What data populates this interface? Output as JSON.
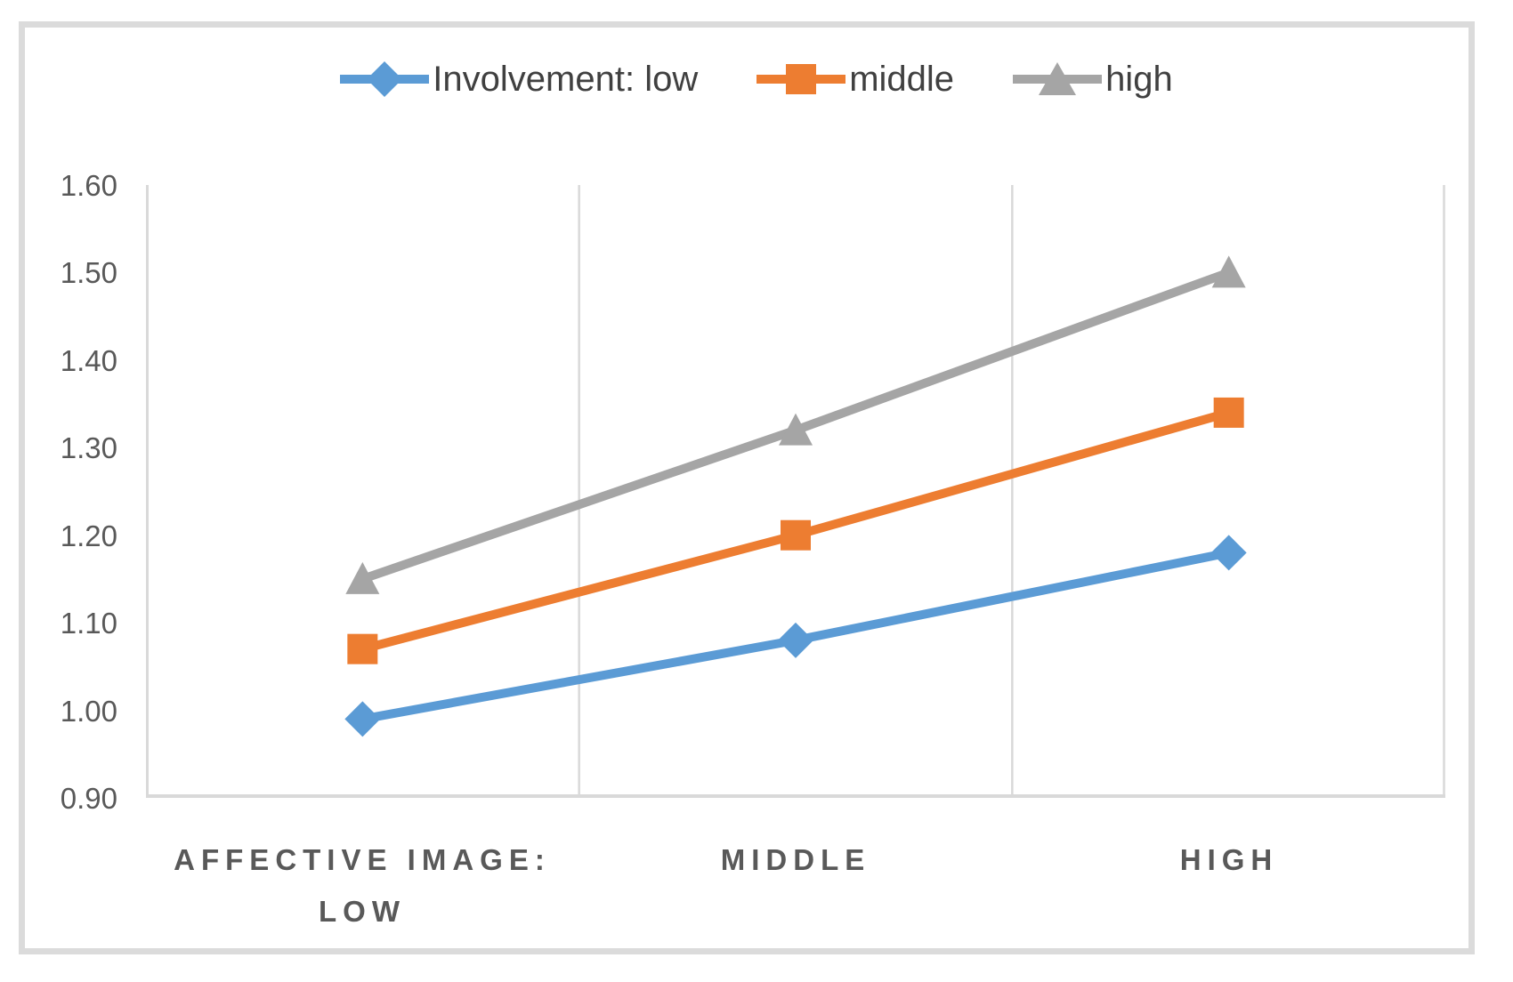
{
  "chart_data": {
    "type": "line",
    "title": "",
    "xlabel": "",
    "ylabel": "",
    "categories": [
      "AFFECTIVE IMAGE: LOW",
      "MIDDLE",
      "HIGH"
    ],
    "x_display": [
      "AFFECTIVE IMAGE:\nLOW",
      "MIDDLE",
      "HIGH"
    ],
    "series": [
      {
        "name": "Involvement: low",
        "marker": "diamond",
        "color": "#5B9BD5",
        "values": [
          0.99,
          1.08,
          1.18
        ]
      },
      {
        "name": "middle",
        "marker": "square",
        "color": "#ED7D31",
        "values": [
          1.07,
          1.2,
          1.34
        ]
      },
      {
        "name": "high",
        "marker": "triangle",
        "color": "#A5A5A5",
        "values": [
          1.15,
          1.32,
          1.5
        ]
      }
    ],
    "ylim": [
      0.9,
      1.6
    ],
    "ytick_step": 0.1,
    "yticks": [
      "1.60",
      "1.50",
      "1.40",
      "1.30",
      "1.20",
      "1.10",
      "1.00",
      "0.90"
    ],
    "grid": {
      "vertical": true,
      "horizontal": false
    },
    "legend_position": "top-center",
    "colors": {
      "gridline": "#D9D9D9",
      "axis_line": "#D9D9D9",
      "tick_text": "#595959",
      "legend_text": "#404040",
      "frame": "#DBDBDB"
    }
  }
}
